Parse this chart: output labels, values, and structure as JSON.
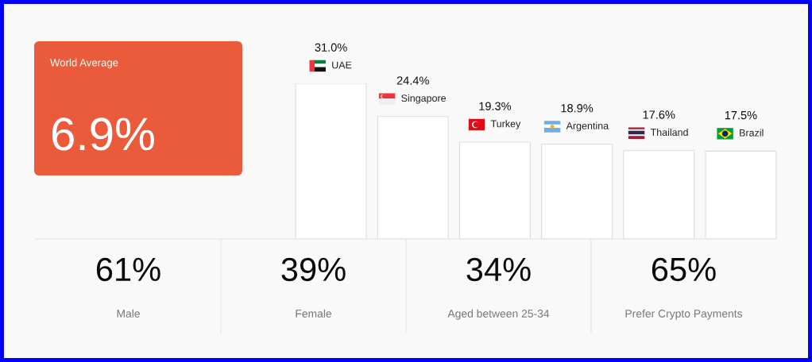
{
  "chart_data": [
    {
      "type": "other",
      "title": "World Average",
      "annotations": [
        "6.9%"
      ],
      "color": "#ea5b3b"
    },
    {
      "type": "bar",
      "categories": [
        "UAE",
        "Singapore",
        "Turkey",
        "Argentina",
        "Thailand",
        "Brazil"
      ],
      "values": [
        31.0,
        24.4,
        19.3,
        18.9,
        17.6,
        17.5
      ],
      "value_labels": [
        "31.0%",
        "24.4%",
        "19.3%",
        "18.9%",
        "17.6%",
        "17.5%"
      ],
      "color": "#ffffff"
    },
    {
      "type": "other",
      "categories": [
        "Male",
        "Female",
        "Aged between 25-34",
        "Prefer Crypto Payments"
      ],
      "value_labels": [
        "61%",
        "39%",
        "34%",
        "65%"
      ]
    }
  ]
}
